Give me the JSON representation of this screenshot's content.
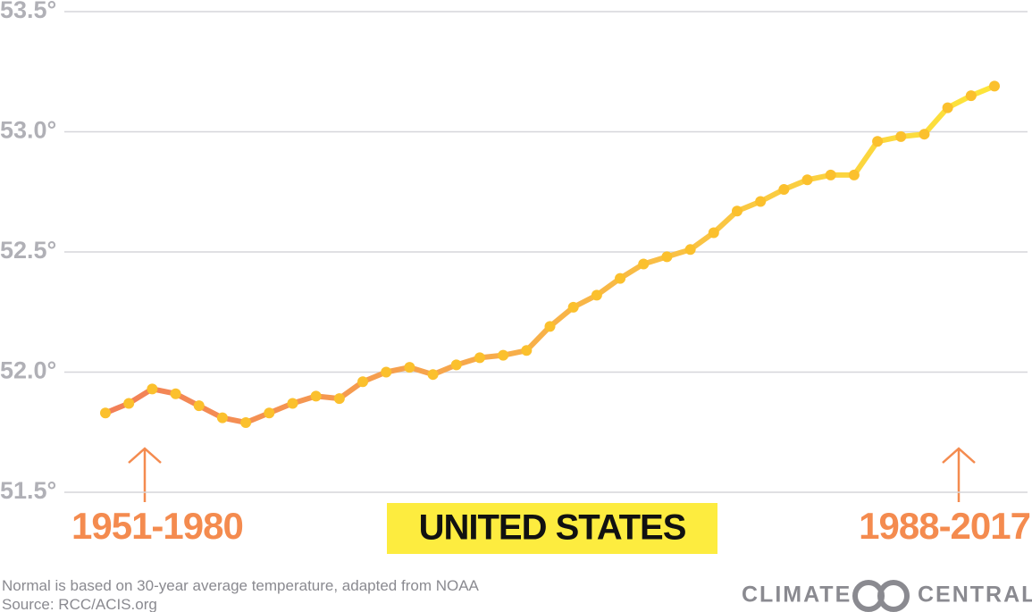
{
  "chart_data": {
    "type": "line",
    "title": "UNITED STATES",
    "annotations": [
      "1951-1980",
      "1988-2017"
    ],
    "footnote": [
      "Normal is based on 30-year average temperature, adapted from NOAA",
      "Source: RCC/ACIS.org"
    ],
    "brand": [
      "CLIMATE",
      "CENTRAL"
    ],
    "series": [
      {
        "color": "#f27f58",
        "end_color": "#fde53a",
        "marker_color": "#fbc02d",
        "values": [
          51.83,
          51.87,
          51.93,
          51.91,
          51.86,
          51.81,
          51.79,
          51.83,
          51.87,
          51.9,
          51.89,
          51.96,
          52.0,
          52.02,
          51.99,
          52.03,
          52.06,
          52.07,
          52.09,
          52.19,
          52.27,
          52.32,
          52.39,
          52.45,
          52.48,
          52.51,
          52.58,
          52.67,
          52.71,
          52.76,
          52.8,
          52.82,
          52.82,
          52.96,
          52.98,
          52.99,
          53.1,
          53.15,
          53.19
        ]
      }
    ],
    "ylim": [
      51.5,
      53.5
    ],
    "yticks": [
      {
        "value": 51.5,
        "label": "51.5°"
      },
      {
        "value": 52.0,
        "label": "52.0°"
      },
      {
        "value": 52.5,
        "label": "52.5°"
      },
      {
        "value": 53.0,
        "label": "53.0°"
      },
      {
        "value": 53.5,
        "label": "53.5°"
      }
    ],
    "grid": true
  }
}
